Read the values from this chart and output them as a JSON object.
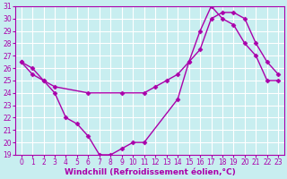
{
  "line1_x": [
    0,
    1,
    2,
    3,
    4,
    5,
    6,
    7,
    8,
    9,
    10,
    11,
    14,
    15,
    16,
    17,
    18,
    19,
    20,
    21,
    22,
    23
  ],
  "line1_y": [
    26.5,
    26.0,
    25.0,
    24.0,
    22.0,
    21.5,
    20.5,
    19.0,
    19.0,
    19.5,
    20.0,
    20.0,
    23.5,
    26.5,
    29.0,
    31.0,
    30.0,
    29.5,
    28.0,
    27.0,
    25.0,
    25.0
  ],
  "line2_x": [
    0,
    1,
    2,
    3,
    6,
    9,
    11,
    12,
    13,
    14,
    15,
    16,
    17,
    18,
    19,
    20,
    21,
    22,
    23
  ],
  "line2_y": [
    26.5,
    25.5,
    25.0,
    24.5,
    24.0,
    24.0,
    24.0,
    24.5,
    25.0,
    25.5,
    26.5,
    27.5,
    30.0,
    30.5,
    30.5,
    30.0,
    28.0,
    26.5,
    25.5
  ],
  "line_color": "#aa00aa",
  "marker": "D",
  "marker_size": 2.5,
  "bg_color": "#c8eef0",
  "grid_color": "#ffffff",
  "xlabel": "Windchill (Refroidissement éolien,°C)",
  "xlim": [
    -0.5,
    23.5
  ],
  "ylim": [
    19,
    31
  ],
  "xticks": [
    0,
    1,
    2,
    3,
    4,
    5,
    6,
    7,
    8,
    9,
    10,
    11,
    12,
    13,
    14,
    15,
    16,
    17,
    18,
    19,
    20,
    21,
    22,
    23
  ],
  "yticks": [
    19,
    20,
    21,
    22,
    23,
    24,
    25,
    26,
    27,
    28,
    29,
    30,
    31
  ],
  "xlabel_fontsize": 6.5,
  "tick_fontsize": 5.5,
  "line_width": 1.0
}
